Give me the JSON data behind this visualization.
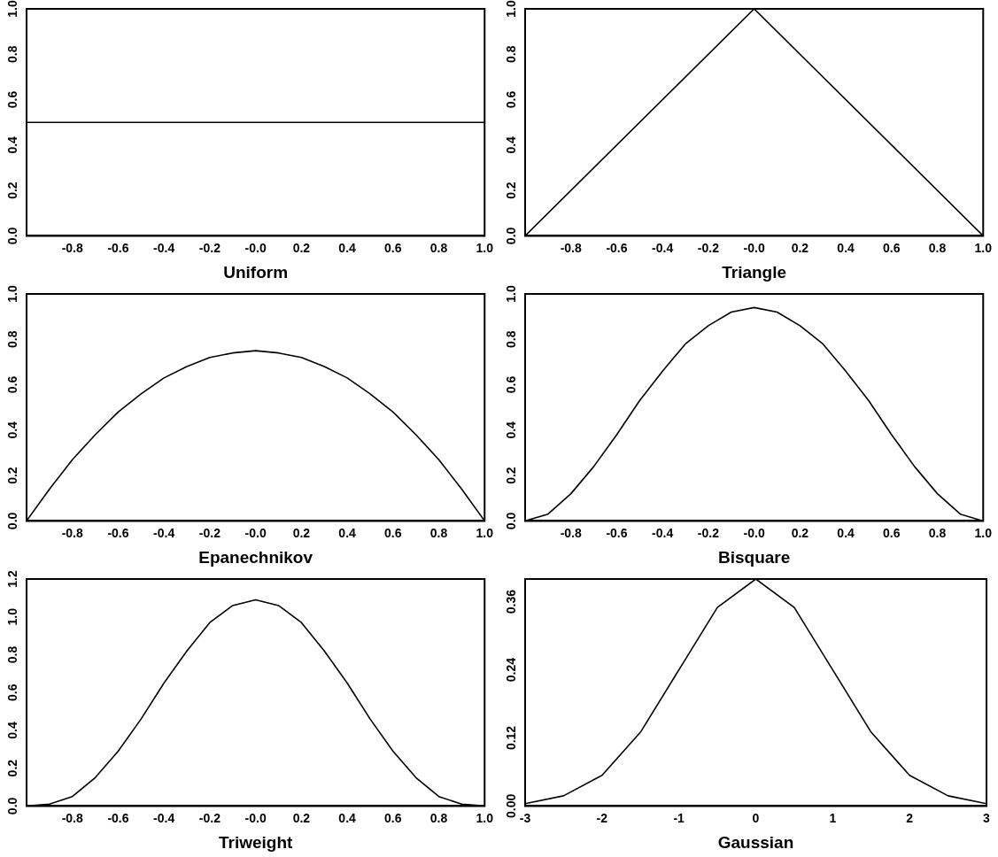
{
  "chart_data": [
    {
      "type": "line",
      "xlabel": "Uniform",
      "x": [
        -1,
        1
      ],
      "values": [
        0.5,
        0.5
      ],
      "color": "#000000",
      "marker": "none",
      "line_style": "solid",
      "grid": false,
      "xlim": [
        -1,
        1
      ],
      "ylim": [
        0,
        1
      ],
      "xticks": [
        {
          "value": -0.8,
          "label": "-0.8"
        },
        {
          "value": -0.6,
          "label": "-0.6"
        },
        {
          "value": -0.4,
          "label": "-0.4"
        },
        {
          "value": -0.2,
          "label": "-0.2"
        },
        {
          "value": 0,
          "label": "-0.0"
        },
        {
          "value": 0.2,
          "label": "0.2"
        },
        {
          "value": 0.4,
          "label": "0.4"
        },
        {
          "value": 0.6,
          "label": "0.6"
        },
        {
          "value": 0.8,
          "label": "0.8"
        },
        {
          "value": 1,
          "label": "1.0"
        }
      ],
      "yticks": [
        {
          "value": 0,
          "label": "0.0"
        },
        {
          "value": 0.2,
          "label": "0.2"
        },
        {
          "value": 0.4,
          "label": "0.4"
        },
        {
          "value": 0.6,
          "label": "0.6"
        },
        {
          "value": 0.8,
          "label": "0.8"
        },
        {
          "value": 1,
          "label": "1.0"
        }
      ]
    },
    {
      "type": "line",
      "xlabel": "Triangle",
      "x": [
        -1,
        0,
        1
      ],
      "values": [
        0,
        1,
        0
      ],
      "color": "#000000",
      "marker": "none",
      "line_style": "solid",
      "grid": false,
      "xlim": [
        -1,
        1
      ],
      "ylim": [
        0,
        1
      ],
      "xticks": [
        {
          "value": -0.8,
          "label": "-0.8"
        },
        {
          "value": -0.6,
          "label": "-0.6"
        },
        {
          "value": -0.4,
          "label": "-0.4"
        },
        {
          "value": -0.2,
          "label": "-0.2"
        },
        {
          "value": 0,
          "label": "-0.0"
        },
        {
          "value": 0.2,
          "label": "0.2"
        },
        {
          "value": 0.4,
          "label": "0.4"
        },
        {
          "value": 0.6,
          "label": "0.6"
        },
        {
          "value": 0.8,
          "label": "0.8"
        },
        {
          "value": 1,
          "label": "1.0"
        }
      ],
      "yticks": [
        {
          "value": 0,
          "label": "0.0"
        },
        {
          "value": 0.2,
          "label": "0.2"
        },
        {
          "value": 0.4,
          "label": "0.4"
        },
        {
          "value": 0.6,
          "label": "0.6"
        },
        {
          "value": 0.8,
          "label": "0.8"
        },
        {
          "value": 1,
          "label": "1.0"
        }
      ]
    },
    {
      "type": "line",
      "xlabel": "Epanechnikov",
      "x": [
        -1,
        -0.9,
        -0.8,
        -0.7,
        -0.6,
        -0.5,
        -0.4,
        -0.3,
        -0.2,
        -0.1,
        0,
        0.1,
        0.2,
        0.3,
        0.4,
        0.5,
        0.6,
        0.7,
        0.8,
        0.9,
        1
      ],
      "values": [
        0,
        0.14,
        0.27,
        0.38,
        0.48,
        0.56,
        0.63,
        0.68,
        0.72,
        0.74,
        0.75,
        0.74,
        0.72,
        0.68,
        0.63,
        0.56,
        0.48,
        0.38,
        0.27,
        0.14,
        0
      ],
      "color": "#000000",
      "marker": "none",
      "line_style": "solid",
      "grid": false,
      "xlim": [
        -1,
        1
      ],
      "ylim": [
        0,
        1
      ],
      "xticks": [
        {
          "value": -0.8,
          "label": "-0.8"
        },
        {
          "value": -0.6,
          "label": "-0.6"
        },
        {
          "value": -0.4,
          "label": "-0.4"
        },
        {
          "value": -0.2,
          "label": "-0.2"
        },
        {
          "value": 0,
          "label": "-0.0"
        },
        {
          "value": 0.2,
          "label": "0.2"
        },
        {
          "value": 0.4,
          "label": "0.4"
        },
        {
          "value": 0.6,
          "label": "0.6"
        },
        {
          "value": 0.8,
          "label": "0.8"
        },
        {
          "value": 1,
          "label": "1.0"
        }
      ],
      "yticks": [
        {
          "value": 0,
          "label": "0.0"
        },
        {
          "value": 0.2,
          "label": "0.2"
        },
        {
          "value": 0.4,
          "label": "0.4"
        },
        {
          "value": 0.6,
          "label": "0.6"
        },
        {
          "value": 0.8,
          "label": "0.8"
        },
        {
          "value": 1,
          "label": "1.0"
        }
      ]
    },
    {
      "type": "line",
      "xlabel": "Bisquare",
      "x": [
        -1,
        -0.9,
        -0.8,
        -0.7,
        -0.6,
        -0.5,
        -0.4,
        -0.3,
        -0.2,
        -0.1,
        0,
        0.1,
        0.2,
        0.3,
        0.4,
        0.5,
        0.6,
        0.7,
        0.8,
        0.9,
        1
      ],
      "values": [
        0,
        0.03,
        0.12,
        0.24,
        0.38,
        0.53,
        0.66,
        0.78,
        0.86,
        0.92,
        0.94,
        0.92,
        0.86,
        0.78,
        0.66,
        0.53,
        0.38,
        0.24,
        0.12,
        0.03,
        0
      ],
      "color": "#000000",
      "marker": "none",
      "line_style": "solid",
      "grid": false,
      "xlim": [
        -1,
        1
      ],
      "ylim": [
        0,
        1
      ],
      "xticks": [
        {
          "value": -0.8,
          "label": "-0.8"
        },
        {
          "value": -0.6,
          "label": "-0.6"
        },
        {
          "value": -0.4,
          "label": "-0.4"
        },
        {
          "value": -0.2,
          "label": "-0.2"
        },
        {
          "value": 0,
          "label": "-0.0"
        },
        {
          "value": 0.2,
          "label": "0.2"
        },
        {
          "value": 0.4,
          "label": "0.4"
        },
        {
          "value": 0.6,
          "label": "0.6"
        },
        {
          "value": 0.8,
          "label": "0.8"
        },
        {
          "value": 1,
          "label": "1.0"
        }
      ],
      "yticks": [
        {
          "value": 0,
          "label": "0.0"
        },
        {
          "value": 0.2,
          "label": "0.2"
        },
        {
          "value": 0.4,
          "label": "0.4"
        },
        {
          "value": 0.6,
          "label": "0.6"
        },
        {
          "value": 0.8,
          "label": "0.8"
        },
        {
          "value": 1,
          "label": "1.0"
        }
      ]
    },
    {
      "type": "line",
      "xlabel": "Triweight",
      "x": [
        -1,
        -0.9,
        -0.8,
        -0.7,
        -0.6,
        -0.5,
        -0.4,
        -0.3,
        -0.2,
        -0.1,
        0,
        0.1,
        0.2,
        0.3,
        0.4,
        0.5,
        0.6,
        0.7,
        0.8,
        0.9,
        1
      ],
      "values": [
        0,
        0.01,
        0.05,
        0.15,
        0.29,
        0.46,
        0.65,
        0.82,
        0.97,
        1.06,
        1.09,
        1.06,
        0.97,
        0.82,
        0.65,
        0.46,
        0.29,
        0.15,
        0.05,
        0.01,
        0
      ],
      "color": "#000000",
      "marker": "none",
      "line_style": "solid",
      "grid": false,
      "xlim": [
        -1,
        1
      ],
      "ylim": [
        0,
        1.2
      ],
      "xticks": [
        {
          "value": -0.8,
          "label": "-0.8"
        },
        {
          "value": -0.6,
          "label": "-0.6"
        },
        {
          "value": -0.4,
          "label": "-0.4"
        },
        {
          "value": -0.2,
          "label": "-0.2"
        },
        {
          "value": 0,
          "label": "-0.0"
        },
        {
          "value": 0.2,
          "label": "0.2"
        },
        {
          "value": 0.4,
          "label": "0.4"
        },
        {
          "value": 0.6,
          "label": "0.6"
        },
        {
          "value": 0.8,
          "label": "0.8"
        },
        {
          "value": 1,
          "label": "1.0"
        }
      ],
      "yticks": [
        {
          "value": 0,
          "label": "0.0"
        },
        {
          "value": 0.2,
          "label": "0.2"
        },
        {
          "value": 0.4,
          "label": "0.4"
        },
        {
          "value": 0.6,
          "label": "0.6"
        },
        {
          "value": 0.8,
          "label": "0.8"
        },
        {
          "value": 1,
          "label": "1.0"
        },
        {
          "value": 1.2,
          "label": "1.2"
        }
      ]
    },
    {
      "type": "line",
      "xlabel": "Gaussian",
      "x": [
        -3,
        -2.5,
        -2,
        -1.5,
        -1,
        -0.5,
        0,
        0.5,
        1,
        1.5,
        2,
        2.5,
        3
      ],
      "values": [
        0.004,
        0.018,
        0.054,
        0.13,
        0.24,
        0.35,
        0.4,
        0.35,
        0.24,
        0.13,
        0.054,
        0.018,
        0.004
      ],
      "color": "#000000",
      "marker": "none",
      "line_style": "solid",
      "grid": false,
      "xlim": [
        -3,
        3
      ],
      "ylim": [
        0,
        0.4
      ],
      "xticks": [
        -3,
        -2,
        -1,
        0,
        1,
        2,
        3
      ],
      "yticks": [
        {
          "value": 0,
          "label": "0.00"
        },
        {
          "value": 0.12,
          "label": "0.12"
        },
        {
          "value": 0.24,
          "label": "0.24"
        },
        {
          "value": 0.36,
          "label": "0.36"
        }
      ]
    }
  ]
}
